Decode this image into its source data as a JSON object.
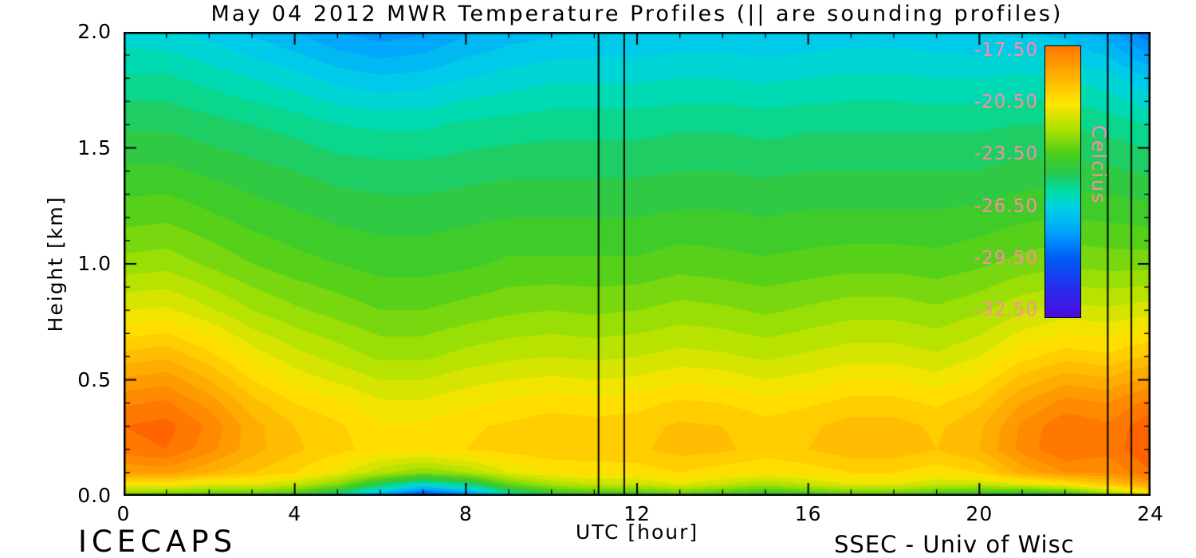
{
  "footer": {
    "left": "ICECAPS",
    "right": "SSEC - Univ of Wisc"
  },
  "chart_data": {
    "type": "heatmap",
    "title": "May 04 2012 MWR Temperature Profiles (|| are sounding profiles)",
    "xlabel": "UTC [hour]",
    "ylabel": "Height [km]",
    "xlim": [
      0,
      24
    ],
    "ylim": [
      0,
      2
    ],
    "x_tick_labels": [
      "0",
      "4",
      "8",
      "12",
      "16",
      "20",
      "24"
    ],
    "x_minor_step": 1,
    "y_tick_labels": [
      "0.0",
      "0.5",
      "1.0",
      "1.5",
      "2.0"
    ],
    "y_minor_step": 0.1,
    "grid": false,
    "contour_interval": 0.5,
    "units": "Celcius",
    "sounding_lines_utc": [
      11.1,
      11.7,
      23.0,
      23.55
    ],
    "x": [
      0,
      1,
      2,
      3,
      4,
      5,
      6,
      7,
      8,
      9,
      10,
      11,
      12,
      13,
      14,
      15,
      16,
      17,
      18,
      19,
      20,
      21,
      22,
      23,
      24
    ],
    "y": [
      0.0,
      0.05,
      0.1,
      0.2,
      0.3,
      0.4,
      0.5,
      0.6,
      0.8,
      1.0,
      1.2,
      1.4,
      1.6,
      1.8,
      2.0
    ],
    "values": [
      [
        -23.0,
        -23.2,
        -23.5,
        -23.5,
        -24.0,
        -25.5,
        -28.0,
        -30.5,
        -29.0,
        -26.0,
        -24.5,
        -24.0,
        -24.0,
        -23.5,
        -24.0,
        -24.5,
        -24.0,
        -23.5,
        -23.5,
        -24.0,
        -24.5,
        -25.0,
        -24.5,
        -23.0,
        -21.0
      ],
      [
        -20.5,
        -20.5,
        -21.0,
        -21.0,
        -21.5,
        -22.5,
        -24.5,
        -26.0,
        -25.0,
        -23.0,
        -22.0,
        -21.5,
        -21.5,
        -21.0,
        -21.5,
        -22.0,
        -21.5,
        -21.0,
        -21.0,
        -21.5,
        -21.5,
        -21.0,
        -20.5,
        -19.5,
        -18.5
      ],
      [
        -18.5,
        -18.3,
        -19.0,
        -19.5,
        -20.0,
        -20.8,
        -21.8,
        -22.5,
        -22.0,
        -21.0,
        -20.5,
        -20.3,
        -20.3,
        -20.0,
        -20.3,
        -20.5,
        -20.3,
        -20.0,
        -20.0,
        -20.3,
        -20.0,
        -18.8,
        -18.0,
        -18.0,
        -17.0
      ],
      [
        -17.2,
        -17.0,
        -17.8,
        -18.8,
        -19.4,
        -19.8,
        -20.3,
        -20.3,
        -20.0,
        -19.8,
        -19.6,
        -19.7,
        -19.6,
        -19.3,
        -19.4,
        -19.7,
        -19.5,
        -19.2,
        -19.2,
        -19.5,
        -19.0,
        -17.8,
        -17.0,
        -17.3,
        -16.5
      ],
      [
        -17.0,
        -16.8,
        -17.6,
        -18.8,
        -19.5,
        -19.9,
        -20.4,
        -20.4,
        -20.1,
        -19.9,
        -19.7,
        -19.8,
        -19.7,
        -19.4,
        -19.5,
        -19.8,
        -19.6,
        -19.3,
        -19.3,
        -19.6,
        -19.1,
        -17.9,
        -17.1,
        -17.4,
        -16.6
      ],
      [
        -17.6,
        -17.4,
        -18.2,
        -19.3,
        -20.0,
        -20.4,
        -20.9,
        -20.9,
        -20.6,
        -20.4,
        -20.2,
        -20.3,
        -20.2,
        -19.9,
        -20.0,
        -20.3,
        -20.1,
        -19.8,
        -19.8,
        -20.1,
        -19.6,
        -18.5,
        -17.8,
        -18.0,
        -17.3
      ],
      [
        -18.4,
        -18.2,
        -19.0,
        -20.0,
        -20.7,
        -21.1,
        -21.5,
        -21.5,
        -21.2,
        -21.0,
        -20.9,
        -21.0,
        -20.9,
        -20.6,
        -20.7,
        -21.0,
        -20.8,
        -20.5,
        -20.5,
        -20.8,
        -20.3,
        -19.3,
        -18.7,
        -18.9,
        -18.3
      ],
      [
        -19.3,
        -19.1,
        -19.8,
        -20.7,
        -21.3,
        -21.7,
        -22.1,
        -22.1,
        -21.8,
        -21.6,
        -21.5,
        -21.6,
        -21.5,
        -21.3,
        -21.4,
        -21.6,
        -21.4,
        -21.2,
        -21.2,
        -21.4,
        -21.0,
        -20.2,
        -19.7,
        -19.9,
        -19.4
      ],
      [
        -21.0,
        -20.9,
        -21.4,
        -22.0,
        -22.4,
        -22.7,
        -23.0,
        -23.0,
        -22.8,
        -22.6,
        -22.5,
        -22.6,
        -22.5,
        -22.3,
        -22.4,
        -22.6,
        -22.4,
        -22.2,
        -22.2,
        -22.4,
        -22.1,
        -21.6,
        -21.3,
        -21.4,
        -21.2
      ],
      [
        -22.3,
        -22.2,
        -22.6,
        -23.0,
        -23.3,
        -23.5,
        -23.7,
        -23.7,
        -23.6,
        -23.4,
        -23.4,
        -23.4,
        -23.4,
        -23.2,
        -23.3,
        -23.4,
        -23.3,
        -23.2,
        -23.2,
        -23.3,
        -23.1,
        -22.8,
        -22.6,
        -22.7,
        -22.7
      ],
      [
        -23.2,
        -23.1,
        -23.4,
        -23.7,
        -23.9,
        -24.1,
        -24.2,
        -24.2,
        -24.1,
        -24.0,
        -24.0,
        -24.0,
        -24.0,
        -23.9,
        -23.9,
        -24.0,
        -23.9,
        -23.9,
        -23.9,
        -23.9,
        -23.8,
        -23.6,
        -23.5,
        -23.6,
        -23.7
      ],
      [
        -23.9,
        -23.9,
        -24.1,
        -24.3,
        -24.5,
        -24.7,
        -24.8,
        -24.8,
        -24.7,
        -24.6,
        -24.6,
        -24.6,
        -24.6,
        -24.5,
        -24.5,
        -24.6,
        -24.5,
        -24.5,
        -24.5,
        -24.5,
        -24.5,
        -24.3,
        -24.3,
        -24.4,
        -24.6
      ],
      [
        -24.6,
        -24.6,
        -24.8,
        -25.0,
        -25.2,
        -25.5,
        -25.6,
        -25.6,
        -25.4,
        -25.3,
        -25.2,
        -25.2,
        -25.2,
        -25.1,
        -25.1,
        -25.2,
        -25.1,
        -25.1,
        -25.1,
        -25.1,
        -25.1,
        -25.0,
        -25.0,
        -25.2,
        -25.5
      ],
      [
        -25.4,
        -25.4,
        -25.7,
        -26.0,
        -26.3,
        -26.7,
        -26.9,
        -26.8,
        -26.5,
        -26.3,
        -26.1,
        -26.1,
        -26.1,
        -26.0,
        -26.0,
        -26.1,
        -26.0,
        -25.9,
        -25.9,
        -26.0,
        -26.0,
        -25.9,
        -26.0,
        -26.3,
        -27.0
      ],
      [
        -26.3,
        -26.4,
        -26.7,
        -27.1,
        -27.5,
        -28.0,
        -28.3,
        -28.1,
        -27.6,
        -27.3,
        -27.1,
        -27.0,
        -27.0,
        -26.9,
        -26.9,
        -27.0,
        -26.9,
        -26.8,
        -26.8,
        -26.9,
        -27.0,
        -27.0,
        -27.2,
        -27.8,
        -29.0
      ]
    ],
    "colorbar": {
      "label": "Celcius",
      "tick_labels": [
        "-17.50",
        "-20.50",
        "-23.50",
        "-26.50",
        "-29.50",
        "-32.50"
      ],
      "range": [
        -32.8,
        -17.2
      ],
      "label_color": "#ff8c9e",
      "position": "inside-right"
    },
    "colormap": [
      {
        "t": -33.5,
        "c": "#5a00c8"
      },
      {
        "t": -32.5,
        "c": "#4612e0"
      },
      {
        "t": -31.0,
        "c": "#2330ee"
      },
      {
        "t": -29.5,
        "c": "#005af5"
      },
      {
        "t": -28.0,
        "c": "#00a0ff"
      },
      {
        "t": -26.5,
        "c": "#00d2e6"
      },
      {
        "t": -25.5,
        "c": "#00dca0"
      },
      {
        "t": -24.5,
        "c": "#28c850"
      },
      {
        "t": -23.5,
        "c": "#46cd1e"
      },
      {
        "t": -22.0,
        "c": "#aae100"
      },
      {
        "t": -20.5,
        "c": "#ffe600"
      },
      {
        "t": -19.0,
        "c": "#ffb400"
      },
      {
        "t": -17.5,
        "c": "#ff8200"
      },
      {
        "t": -16.0,
        "c": "#ff4600"
      }
    ]
  }
}
